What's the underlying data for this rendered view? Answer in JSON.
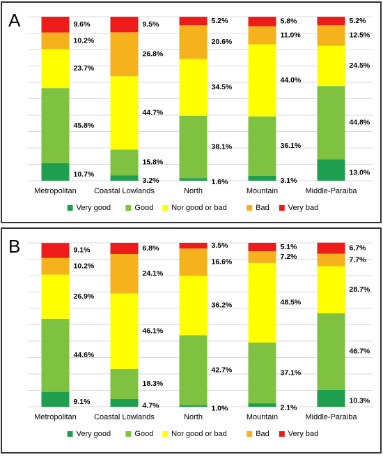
{
  "chart_data": [
    {
      "type": "stacked-bar",
      "label": "A",
      "categories": [
        "Metropolitan",
        "Coastal Lowlands",
        "North",
        "Mountain",
        "Middle-Paraiba"
      ],
      "ylim": [
        0,
        100
      ],
      "yticks": [
        0,
        10,
        20,
        30,
        40,
        50,
        60,
        70,
        80,
        90,
        100
      ],
      "grid": true,
      "legend": "bottom",
      "series": [
        {
          "name": "Very good",
          "color": "#1f9e4f",
          "values": [
            10.7,
            3.2,
            1.6,
            3.1,
            13.0
          ],
          "value_labels": [
            "10.7%",
            "3.2%",
            "1.6%",
            "3.1%",
            "13.0%"
          ]
        },
        {
          "name": "Good",
          "color": "#7fc241",
          "values": [
            45.8,
            15.8,
            38.1,
            36.1,
            44.8
          ],
          "value_labels": [
            "45.8%",
            "15.8%",
            "38.1%",
            "36.1%",
            "44.8%"
          ]
        },
        {
          "name": "Nor good or bad",
          "color": "#ffff00",
          "values": [
            23.7,
            44.7,
            34.5,
            44.0,
            24.5
          ],
          "value_labels": [
            "23.7%",
            "44.7%",
            "34.5%",
            "44.0%",
            "24.5%"
          ]
        },
        {
          "name": "Bad",
          "color": "#f6b21c",
          "values": [
            10.2,
            26.8,
            20.6,
            11.0,
            12.5
          ],
          "value_labels": [
            "10.2%",
            "26.8%",
            "20.6%",
            "11.0%",
            "12.5%"
          ]
        },
        {
          "name": "Very bad",
          "color": "#ee1b1b",
          "values": [
            9.6,
            9.5,
            5.2,
            5.8,
            5.2
          ],
          "value_labels": [
            "9.6%",
            "9.5%",
            "5.2%",
            "5.8%",
            "5.2%"
          ]
        }
      ]
    },
    {
      "type": "stacked-bar",
      "label": "B",
      "categories": [
        "Metropolitan",
        "Coastal Lowlands",
        "North",
        "Mountain",
        "Middle-Paraiba"
      ],
      "ylim": [
        0,
        100
      ],
      "yticks": [
        0,
        10,
        20,
        30,
        40,
        50,
        60,
        70,
        80,
        90,
        100
      ],
      "grid": true,
      "legend": "bottom",
      "series": [
        {
          "name": "Very good",
          "color": "#1f9e4f",
          "values": [
            9.1,
            4.7,
            1.0,
            2.1,
            10.3
          ],
          "value_labels": [
            "9.1%",
            "4.7%",
            "1.0%",
            "2.1%",
            "10.3%"
          ]
        },
        {
          "name": "Good",
          "color": "#7fc241",
          "values": [
            44.6,
            18.3,
            42.7,
            37.1,
            46.7
          ],
          "value_labels": [
            "44.6%",
            "18.3%",
            "42.7%",
            "37.1%",
            "46.7%"
          ]
        },
        {
          "name": "Nor good or bad",
          "color": "#ffff00",
          "values": [
            26.9,
            46.1,
            36.2,
            48.5,
            28.7
          ],
          "value_labels": [
            "26.9%",
            "46.1%",
            "36.2%",
            "48.5%",
            "28.7%"
          ]
        },
        {
          "name": "Bad",
          "color": "#f6b21c",
          "values": [
            10.2,
            24.1,
            16.6,
            7.2,
            7.7
          ],
          "value_labels": [
            "10.2%",
            "24.1%",
            "16.6%",
            "7.2%",
            "7.7%"
          ]
        },
        {
          "name": "Very bad",
          "color": "#ee1b1b",
          "values": [
            9.1,
            6.8,
            3.5,
            5.1,
            6.7
          ],
          "value_labels": [
            "9.1%",
            "6.8%",
            "3.5%",
            "5.1%",
            "6.7%"
          ]
        }
      ]
    }
  ]
}
